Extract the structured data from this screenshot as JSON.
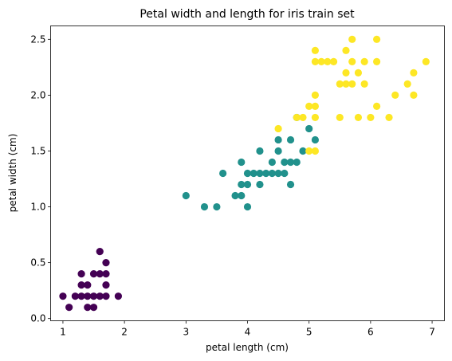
{
  "chart_data": {
    "type": "scatter",
    "title": "Petal width and length for iris train set",
    "xlabel": "petal length (cm)",
    "ylabel": "petal width (cm)",
    "xlim": [
      0.8,
      7.2
    ],
    "ylim": [
      -0.02,
      2.62
    ],
    "xticks": [
      1,
      2,
      3,
      4,
      5,
      6,
      7
    ],
    "yticks": [
      0.0,
      0.5,
      1.0,
      1.5,
      2.0,
      2.5
    ],
    "xtick_labels": [
      "1",
      "2",
      "3",
      "4",
      "5",
      "6",
      "7"
    ],
    "ytick_labels": [
      "0.0",
      "0.5",
      "1.0",
      "1.5",
      "2.0",
      "2.5"
    ],
    "grid": false,
    "legend": false,
    "series": [
      {
        "color": "#440154",
        "points": [
          [
            1.0,
            0.2
          ],
          [
            1.1,
            0.1
          ],
          [
            1.2,
            0.2
          ],
          [
            1.3,
            0.2
          ],
          [
            1.3,
            0.3
          ],
          [
            1.3,
            0.4
          ],
          [
            1.4,
            0.1
          ],
          [
            1.4,
            0.2
          ],
          [
            1.4,
            0.3
          ],
          [
            1.5,
            0.1
          ],
          [
            1.5,
            0.2
          ],
          [
            1.5,
            0.4
          ],
          [
            1.6,
            0.2
          ],
          [
            1.6,
            0.4
          ],
          [
            1.6,
            0.6
          ],
          [
            1.7,
            0.2
          ],
          [
            1.7,
            0.3
          ],
          [
            1.7,
            0.4
          ],
          [
            1.7,
            0.5
          ],
          [
            1.9,
            0.2
          ]
        ]
      },
      {
        "color": "#21918c",
        "points": [
          [
            3.0,
            1.1
          ],
          [
            3.3,
            1.0
          ],
          [
            3.5,
            1.0
          ],
          [
            3.6,
            1.3
          ],
          [
            3.8,
            1.1
          ],
          [
            3.9,
            1.1
          ],
          [
            3.9,
            1.2
          ],
          [
            3.9,
            1.4
          ],
          [
            4.0,
            1.0
          ],
          [
            4.0,
            1.2
          ],
          [
            4.0,
            1.3
          ],
          [
            4.1,
            1.3
          ],
          [
            4.2,
            1.2
          ],
          [
            4.2,
            1.3
          ],
          [
            4.2,
            1.5
          ],
          [
            4.3,
            1.3
          ],
          [
            4.4,
            1.3
          ],
          [
            4.4,
            1.4
          ],
          [
            4.5,
            1.3
          ],
          [
            4.5,
            1.5
          ],
          [
            4.5,
            1.6
          ],
          [
            4.6,
            1.3
          ],
          [
            4.6,
            1.4
          ],
          [
            4.7,
            1.2
          ],
          [
            4.7,
            1.4
          ],
          [
            4.7,
            1.6
          ],
          [
            4.8,
            1.4
          ],
          [
            4.8,
            1.8
          ],
          [
            4.9,
            1.5
          ],
          [
            5.0,
            1.7
          ],
          [
            5.1,
            1.6
          ]
        ]
      },
      {
        "color": "#fde725",
        "points": [
          [
            4.5,
            1.7
          ],
          [
            4.8,
            1.8
          ],
          [
            4.9,
            1.8
          ],
          [
            5.0,
            1.5
          ],
          [
            5.0,
            1.9
          ],
          [
            5.1,
            1.5
          ],
          [
            5.1,
            1.8
          ],
          [
            5.1,
            1.9
          ],
          [
            5.1,
            2.0
          ],
          [
            5.1,
            2.3
          ],
          [
            5.1,
            2.4
          ],
          [
            5.2,
            2.3
          ],
          [
            5.3,
            2.3
          ],
          [
            5.4,
            2.3
          ],
          [
            5.5,
            1.8
          ],
          [
            5.5,
            2.1
          ],
          [
            5.6,
            2.1
          ],
          [
            5.6,
            2.2
          ],
          [
            5.6,
            2.4
          ],
          [
            5.7,
            2.1
          ],
          [
            5.7,
            2.3
          ],
          [
            5.7,
            2.5
          ],
          [
            5.8,
            1.8
          ],
          [
            5.8,
            2.2
          ],
          [
            5.9,
            2.1
          ],
          [
            5.9,
            2.3
          ],
          [
            6.0,
            1.8
          ],
          [
            6.1,
            1.9
          ],
          [
            6.1,
            2.3
          ],
          [
            6.1,
            2.5
          ],
          [
            6.3,
            1.8
          ],
          [
            6.4,
            2.0
          ],
          [
            6.6,
            2.1
          ],
          [
            6.7,
            2.0
          ],
          [
            6.7,
            2.2
          ],
          [
            6.9,
            2.3
          ]
        ]
      }
    ]
  }
}
